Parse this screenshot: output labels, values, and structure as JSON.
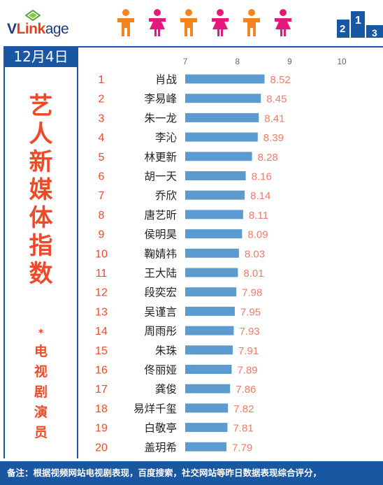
{
  "brand": {
    "logo_text_1": "V",
    "logo_text_2": "Link",
    "logo_text_3": "age"
  },
  "header": {
    "date": "12月4日"
  },
  "side_title": {
    "big_chars": [
      "艺",
      "人",
      "新",
      "媒",
      "体",
      "指",
      "数"
    ],
    "separator": "*",
    "small_chars": [
      "电",
      "视",
      "剧",
      "演",
      "员"
    ]
  },
  "footer": {
    "note": "备注：根据视频网站电视剧表现，百度搜索，社交网站等昨日数据表现综合评分，"
  },
  "colors": {
    "accent": "#ee4a2a",
    "blue": "#1a57a3",
    "bar": "#5b9bd0",
    "value": "#f07a6a",
    "male": "#f5841f",
    "female": "#e5197b"
  },
  "people_icons": [
    "male",
    "female",
    "male",
    "female",
    "male",
    "female"
  ],
  "chart_data": {
    "type": "bar",
    "orientation": "horizontal",
    "xlim": [
      7,
      10
    ],
    "ticks": [
      "7",
      "8",
      "9",
      "10"
    ],
    "grid": false,
    "ranks": [
      "1",
      "2",
      "3",
      "4",
      "5",
      "6",
      "7",
      "8",
      "9",
      "10",
      "11",
      "12",
      "13",
      "14",
      "15",
      "16",
      "17",
      "18",
      "19",
      "20"
    ],
    "categories": [
      "肖战",
      "李易峰",
      "朱一龙",
      "李沁",
      "林更新",
      "胡一天",
      "乔欣",
      "唐艺昕",
      "侯明昊",
      "鞠婧祎",
      "王大陆",
      "段奕宏",
      "吴谨言",
      "周雨彤",
      "朱珠",
      "佟丽娅",
      "龚俊",
      "易烊千玺",
      "白敬亭",
      "盖玥希"
    ],
    "values": [
      8.52,
      8.45,
      8.41,
      8.39,
      8.28,
      8.16,
      8.14,
      8.11,
      8.09,
      8.03,
      8.01,
      7.98,
      7.95,
      7.93,
      7.91,
      7.89,
      7.86,
      7.82,
      7.81,
      7.79
    ],
    "value_labels": [
      "8.52",
      "8.45",
      "8.41",
      "8.39",
      "8.28",
      "8.16",
      "8.14",
      "8.11",
      "8.09",
      "8.03",
      "8.01",
      "7.98",
      "7.95",
      "7.93",
      "7.91",
      "7.89",
      "7.86",
      "7.82",
      "7.81",
      "7.79"
    ]
  }
}
